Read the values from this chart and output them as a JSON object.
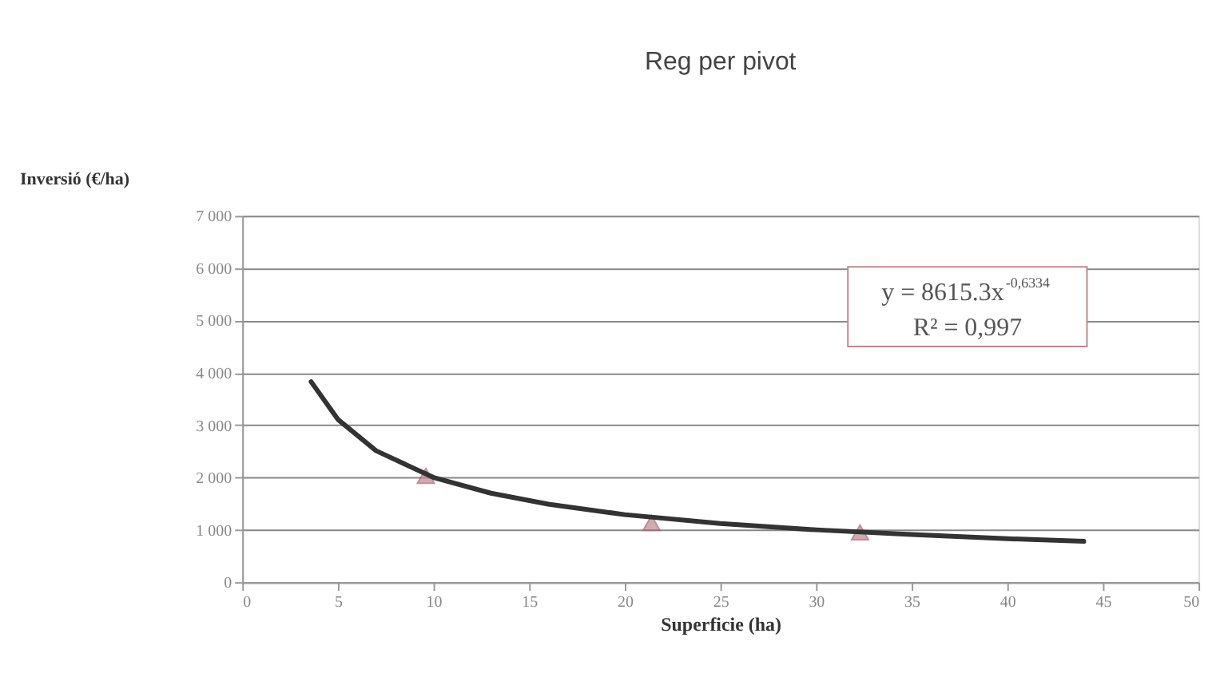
{
  "chart_data": {
    "type": "scatter",
    "title": "Reg per pivot",
    "xlabel": "Superficie (ha)",
    "ylabel": "Inversió (€/ha)",
    "xlim": [
      0,
      50
    ],
    "xticks": [
      0,
      5,
      10,
      15,
      20,
      25,
      30,
      35,
      40,
      45,
      50
    ],
    "ylim": [
      0,
      7000
    ],
    "yticks": [
      0,
      {
        "value": 1000,
        "label": "1 000"
      },
      {
        "value": 2000,
        "label": "2 000"
      },
      {
        "value": 3000,
        "label": "3 000"
      },
      {
        "value": 4000,
        "label": "4 000"
      },
      {
        "value": 5000,
        "label": "5 000"
      },
      {
        "value": 6000,
        "label": "6 000"
      },
      {
        "value": 7000,
        "label": "7 000"
      }
    ],
    "grid": "y",
    "series": [
      {
        "type": "scatter",
        "marker": "triangle",
        "color": "#c08890",
        "x": [
          9.6,
          21.4,
          32.3
        ],
        "values": [
          2030,
          1130,
          950
        ]
      },
      {
        "type": "line",
        "line_style": "solid",
        "marker": "none",
        "color": "#333333",
        "x": [
          3.6,
          5,
          7,
          10,
          13,
          16,
          20,
          25,
          30,
          35,
          40,
          44
        ],
        "values": [
          3830,
          3110,
          2510,
          2000,
          1700,
          1490,
          1290,
          1120,
          1000,
          910,
          830,
          780
        ]
      }
    ],
    "annotations": [
      "y = 8615.3x$^{-0,6334}$",
      "R² = 0,997"
    ]
  }
}
